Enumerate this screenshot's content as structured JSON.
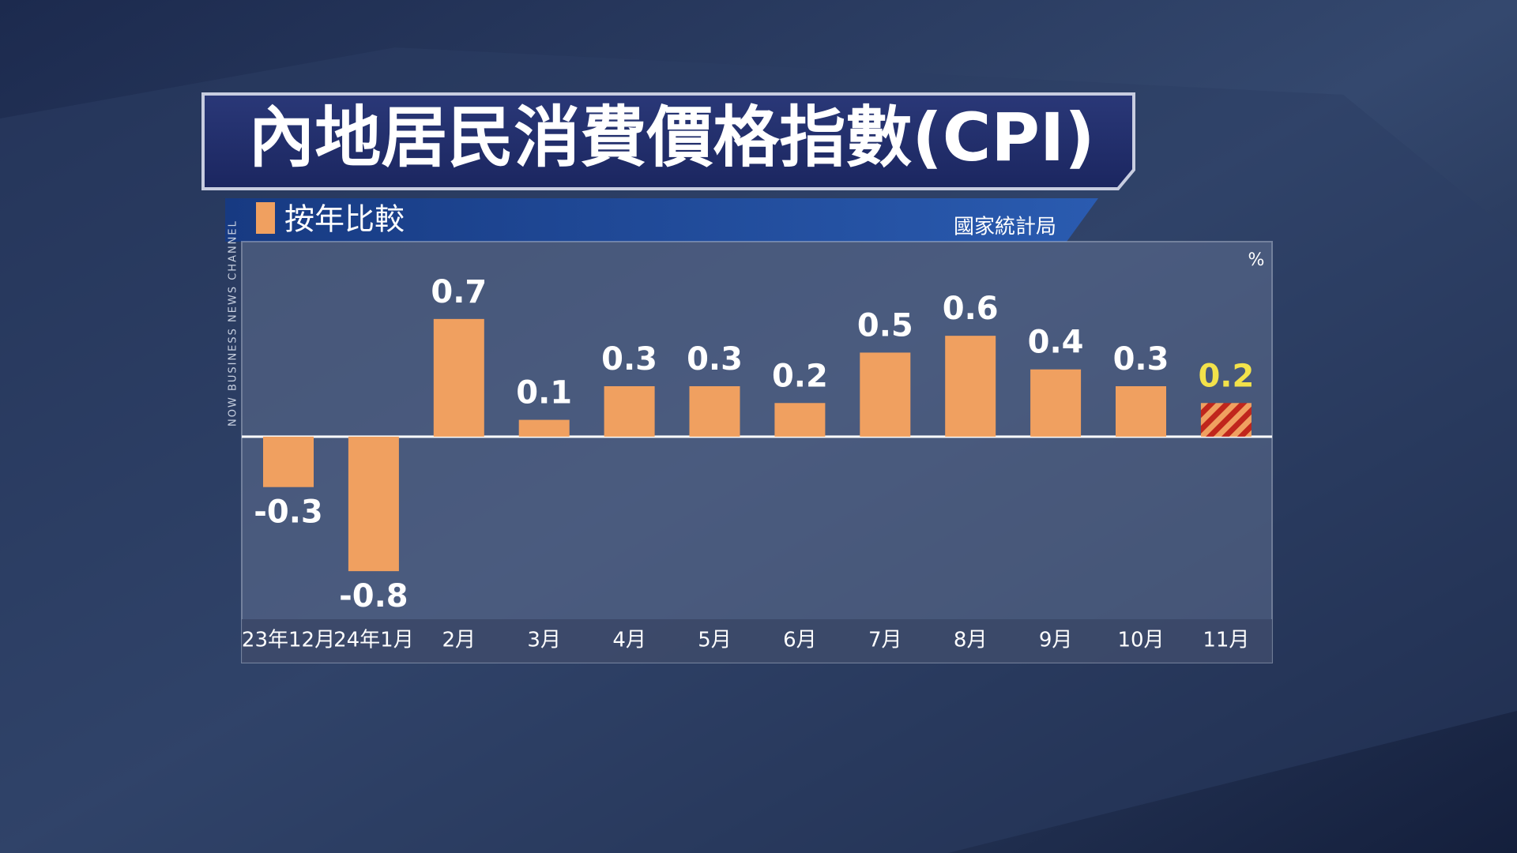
{
  "chart_data": {
    "type": "bar",
    "title": "內地居民消費價格指數(CPI)",
    "subtitle": "按年比較",
    "source": "國家統計局",
    "unit": "%",
    "channel": "NOW BUSINESS NEWS CHANNEL",
    "categories": [
      "23年12月",
      "24年1月",
      "2月",
      "3月",
      "4月",
      "5月",
      "6月",
      "7月",
      "8月",
      "9月",
      "10月",
      "11月"
    ],
    "values": [
      -0.3,
      -0.8,
      0.7,
      0.1,
      0.3,
      0.3,
      0.2,
      0.5,
      0.6,
      0.4,
      0.3,
      0.2
    ],
    "color": "#f0a060",
    "highlight": {
      "index": 11,
      "color": "#c0261c",
      "label_color": "#f3e24a"
    },
    "ylim": [
      -1.1,
      1.0
    ]
  }
}
